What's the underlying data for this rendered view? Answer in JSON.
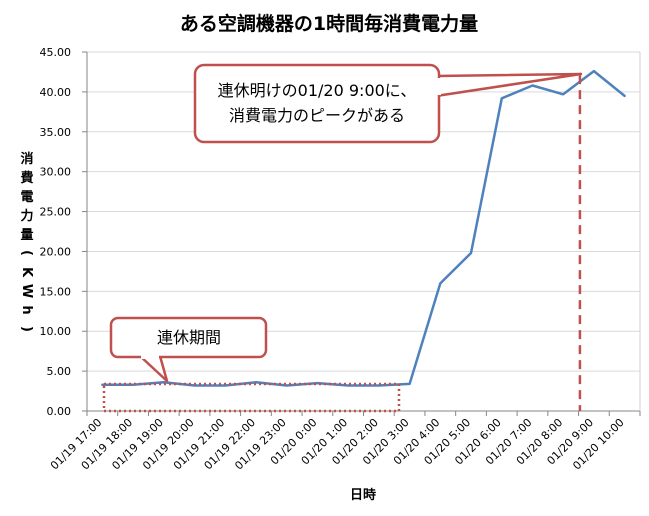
{
  "chart_data": {
    "type": "line",
    "title": "ある空調機器の1時間毎消費電力量",
    "xlabel": "日時",
    "ylabel": "消費電力量(KWh)",
    "ylabel_chars": [
      "消",
      "費",
      "電",
      "力",
      "量",
      "(",
      "K",
      "W",
      "h",
      ")"
    ],
    "ylim": [
      0,
      45
    ],
    "yticks": [
      "0.00",
      "5.00",
      "10.00",
      "15.00",
      "20.00",
      "25.00",
      "30.00",
      "35.00",
      "40.00",
      "45.00"
    ],
    "categories": [
      "01/19 17:00",
      "01/19 18:00",
      "01/19 19:00",
      "01/19 20:00",
      "01/19 21:00",
      "01/19 22:00",
      "01/19 23:00",
      "01/20 0:00",
      "01/20 1:00",
      "01/20 2:00",
      "01/20 3:00",
      "01/20 4:00",
      "01/20 5:00",
      "01/20 6:00",
      "01/20 7:00",
      "01/20 8:00",
      "01/20 9:00",
      "01/20 10:00"
    ],
    "series": [
      {
        "values": [
          3.3,
          3.3,
          3.6,
          3.2,
          3.2,
          3.6,
          3.2,
          3.5,
          3.2,
          3.2,
          3.4,
          16.0,
          19.8,
          39.2,
          40.8,
          39.7,
          42.6,
          39.5
        ]
      }
    ],
    "grid": true,
    "colors": {
      "line": "#4f81bd",
      "annotation": "#c0504d",
      "grid": "#d9d9d9"
    },
    "annotations": {
      "peak_callout": {
        "lines": [
          "連休明けの01/20 9:00に、",
          "消費電力のピークがある"
        ]
      },
      "holiday_callout": {
        "text": "連休期間"
      }
    }
  }
}
